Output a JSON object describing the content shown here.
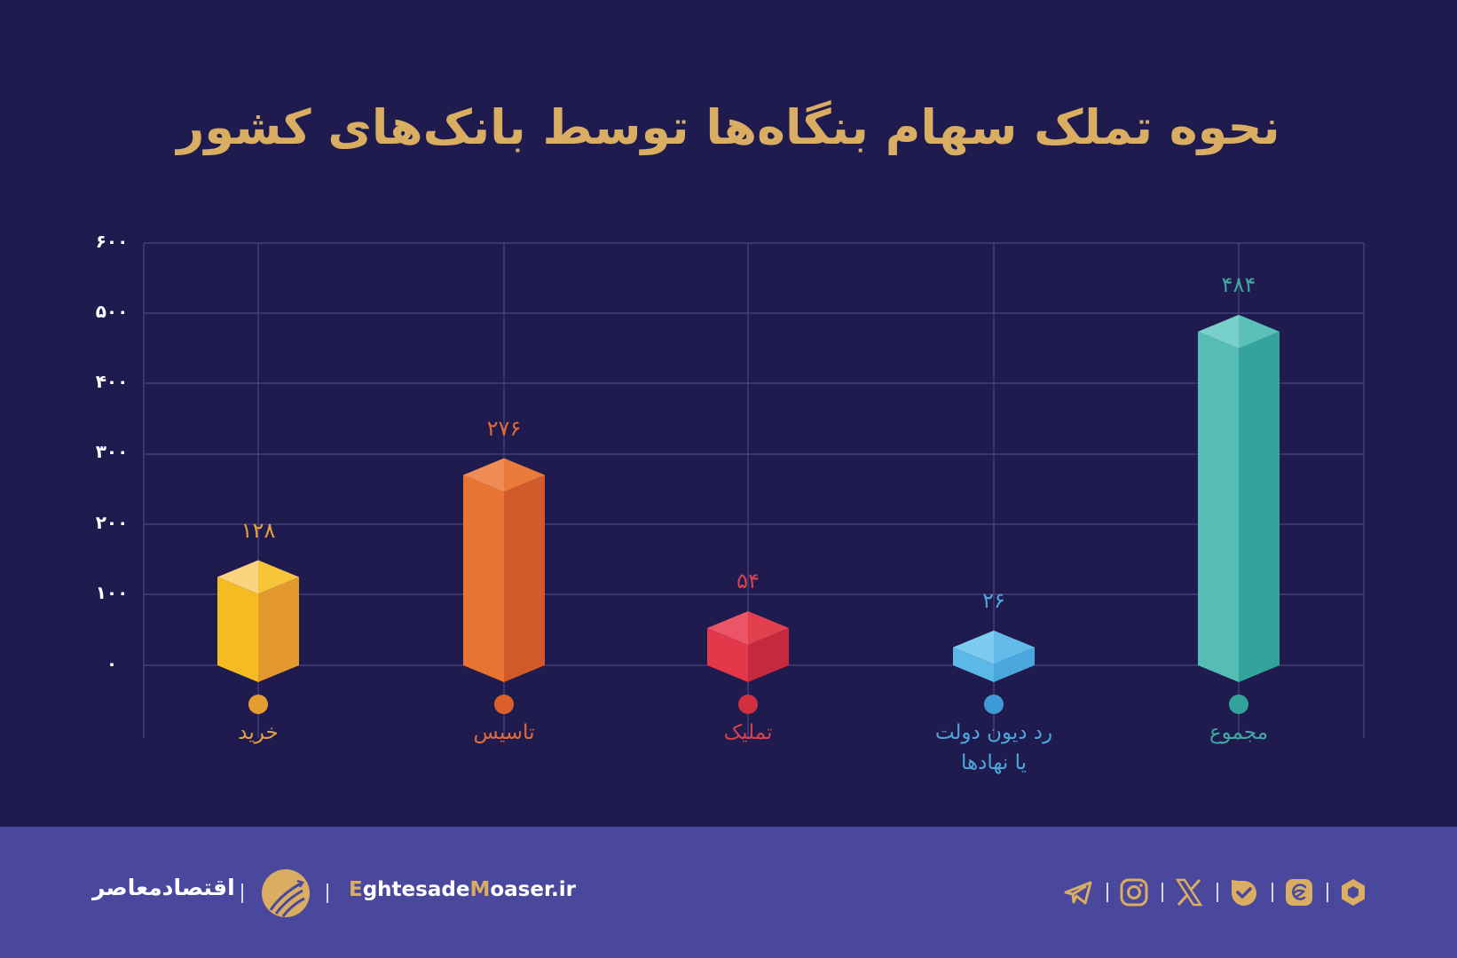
{
  "header": {
    "title": "نحوه تملک سهام بنگاه‌ها توسط بانک‌های کشور"
  },
  "chart_data": {
    "type": "bar",
    "title": "نحوه تملک سهام بنگاه‌ها توسط بانک‌های کشور",
    "xlabel": "",
    "ylabel": "",
    "ylim": [
      0,
      600
    ],
    "y_ticks": [
      "۰",
      "۱۰۰",
      "۲۰۰",
      "۳۰۰",
      "۴۰۰",
      "۵۰۰",
      "۶۰۰"
    ],
    "grid": true,
    "style": "3d-isometric-columns",
    "categories": [
      "خرید",
      "تاسیس",
      "تملیک",
      "رد دیون دولت یا نهادها",
      "مجموع"
    ],
    "values": [
      128,
      276,
      54,
      26,
      484
    ],
    "value_labels": [
      "۱۲۸",
      "۲۷۶",
      "۵۴",
      "۲۶",
      "۴۸۴"
    ],
    "colors": [
      "#f2b824",
      "#e86f30",
      "#e03a4c",
      "#55b4e3",
      "#4fbab2"
    ]
  },
  "bars": [
    {
      "label_line1": "خرید",
      "label_line2": "",
      "value_label": "۱۲۸",
      "value": 128,
      "label_color": "#e4a23c",
      "dot_color": "#e49d2e",
      "front": "#f4bb22",
      "side": "#e3992e",
      "top_l": "#fcd480",
      "top_r": "#f7c43a"
    },
    {
      "label_line1": "تاسیس",
      "label_line2": "",
      "value_label": "۲۷۶",
      "value": 276,
      "label_color": "#e06a36",
      "dot_color": "#dc5f2a",
      "front": "#e87431",
      "side": "#d25a2a",
      "top_l": "#f08c56",
      "top_r": "#ea7b3a"
    },
    {
      "label_line1": "تملیک",
      "label_line2": "",
      "value_label": "۵۴",
      "value": 54,
      "label_color": "#d8404e",
      "dot_color": "#d0303f",
      "front": "#e23849",
      "side": "#c42a3e",
      "top_l": "#ec5468",
      "top_r": "#e2404f"
    },
    {
      "label_line1": "رد دیون دولت",
      "label_line2": "یا نهادها",
      "value_label": "۲۶",
      "value": 26,
      "label_color": "#4da6dc",
      "dot_color": "#3e9bd6",
      "front": "#5cb8e6",
      "side": "#4aa6dc",
      "top_l": "#7ccbf0",
      "top_r": "#62bbe8"
    },
    {
      "label_line1": "مجموع",
      "label_line2": "",
      "value_label": "۴۸۴",
      "value": 484,
      "label_color": "#3fa9a2",
      "dot_color": "#32a39a",
      "front": "#56bcb6",
      "side": "#34a39c",
      "top_l": "#78d0ca",
      "top_r": "#5cc0ba"
    }
  ],
  "axis": {
    "ticks": [
      "۶۰۰",
      "۵۰۰",
      "۴۰۰",
      "۳۰۰",
      "۲۰۰",
      "۱۰۰",
      "۰"
    ]
  },
  "footer": {
    "brand_name_fa": "اقتصادمعاصر",
    "url_part1_accent": "E",
    "url_part2": "ghtesade",
    "url_part3_accent": "M",
    "url_part4": "oaser.ir",
    "social_icons": [
      "telegram-icon",
      "instagram-icon",
      "x-icon",
      "bale-icon",
      "eitaa-icon",
      "rubika-icon"
    ]
  },
  "colors": {
    "background": "#1f1b4e",
    "footer": "#4a489c",
    "gold": "#d9ad62",
    "grid": "#4a4780"
  }
}
